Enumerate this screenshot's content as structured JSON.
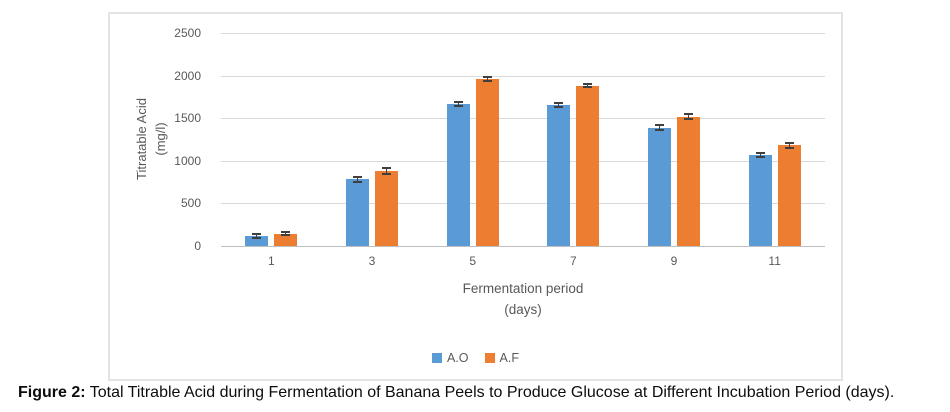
{
  "figure": {
    "caption_label": "Figure 2:",
    "caption_text": " Total Titrable Acid during Fermentation of Banana Peels to Produce Glucose at Different Incubation Period (days)."
  },
  "chart_data": {
    "type": "bar",
    "title": "",
    "categories": [
      "1",
      "3",
      "5",
      "7",
      "9",
      "11"
    ],
    "series": [
      {
        "name": "A.O",
        "color": "#5B9BD5",
        "values": [
          120,
          785,
          1670,
          1655,
          1390,
          1070
        ],
        "errors": [
          25,
          30,
          25,
          25,
          30,
          20
        ]
      },
      {
        "name": "A.F",
        "color": "#ED7D31",
        "values": [
          145,
          880,
          1960,
          1880,
          1515,
          1180
        ],
        "errors": [
          20,
          30,
          20,
          15,
          30,
          25
        ]
      }
    ],
    "xlabel_line1": "Fermentation period",
    "xlabel_line2": "(days)",
    "ylabel_line1": "Titratable Acid",
    "ylabel_line2": "(mg/l)",
    "ylim": [
      0,
      2500
    ],
    "yticks": [
      0,
      500,
      1000,
      1500,
      2000,
      2500
    ],
    "grid": true,
    "error_bars": true,
    "legend_position": "bottom-center"
  },
  "theme": {
    "text_color": "#595959",
    "grid_color": "#D9D9D9",
    "axis_color": "#BFBFBF",
    "error_bar_color": "#3F3F3F",
    "box_border_color": "#E3E3E3",
    "background": "#FFFFFF"
  }
}
